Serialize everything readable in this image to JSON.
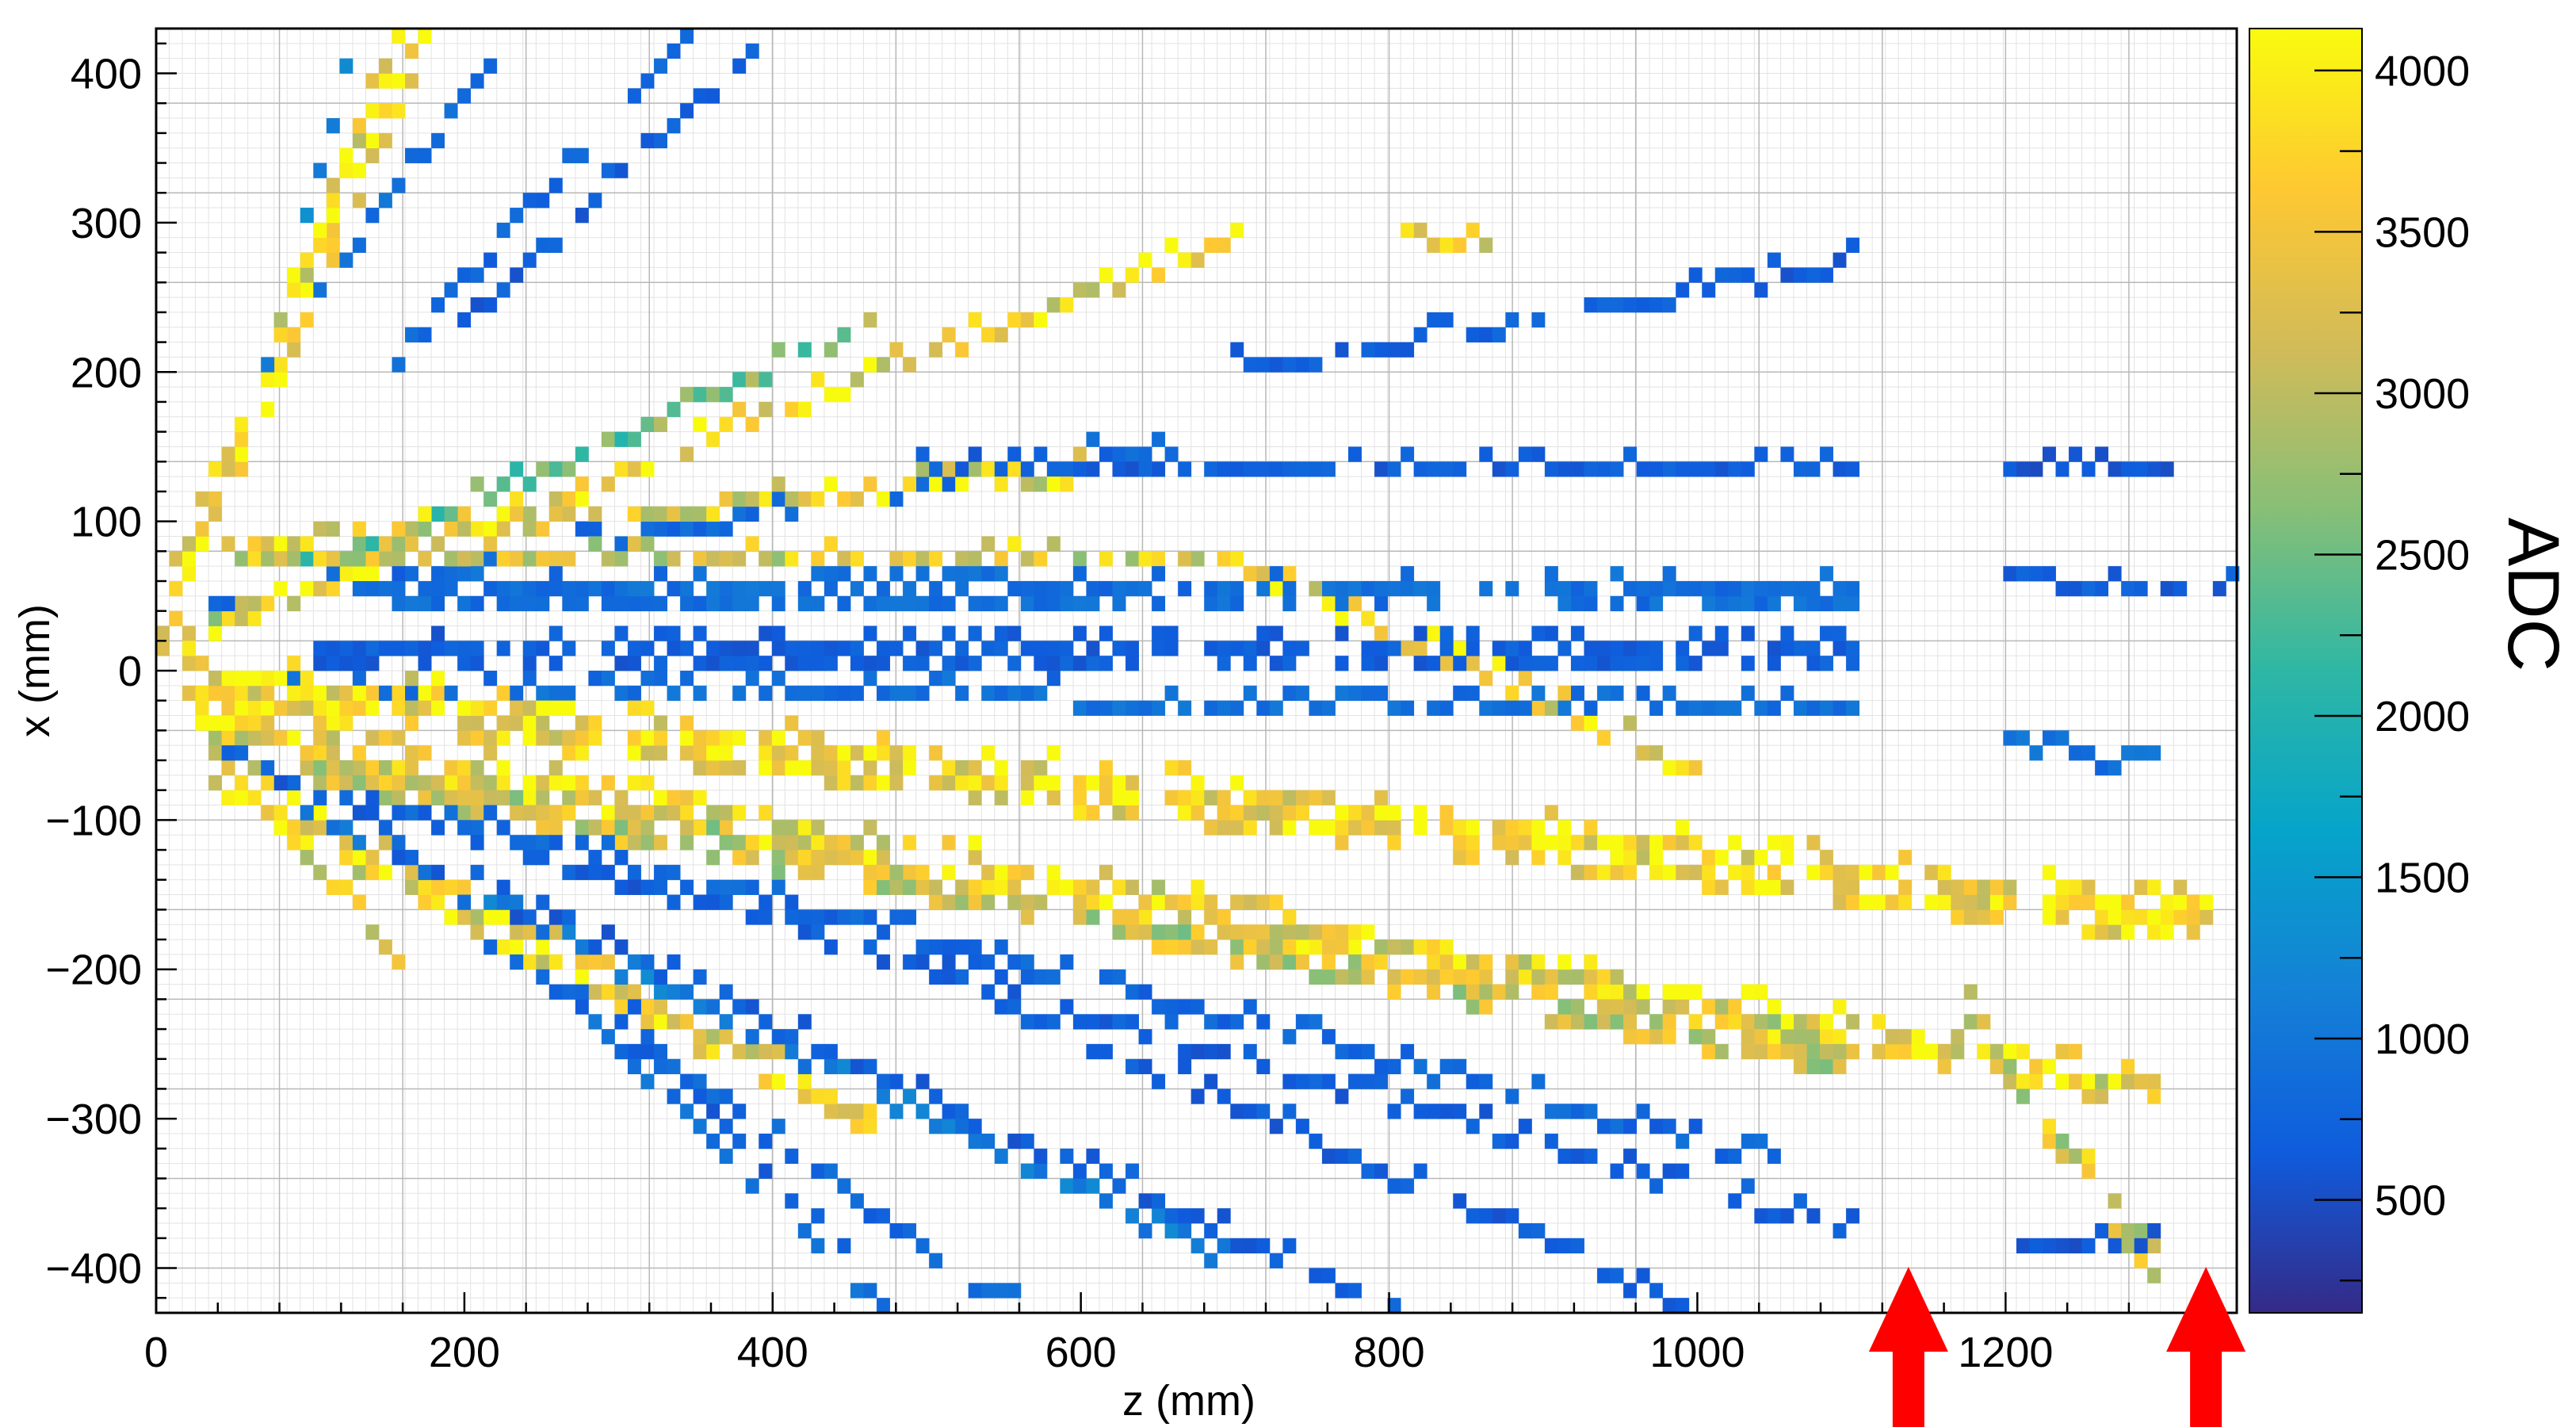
{
  "chart_data": {
    "type": "heatmap",
    "title": "",
    "xlabel": "z (mm)",
    "ylabel": "x (mm)",
    "zlabel": "ADC",
    "xlim": [
      0,
      1350
    ],
    "ylim": [
      -430,
      430
    ],
    "zlim": [
      150,
      4130
    ],
    "x_ticks": [
      0,
      200,
      400,
      600,
      800,
      1000,
      1200
    ],
    "y_ticks": [
      -400,
      -300,
      -200,
      -100,
      0,
      100,
      200,
      300,
      400
    ],
    "y_tick_labels": [
      "−400",
      "−300",
      "−200",
      "−100",
      "0",
      "100",
      "200",
      "300",
      "400"
    ],
    "z_ticks": [
      500,
      1000,
      1500,
      2000,
      2500,
      3000,
      3500,
      4000
    ],
    "grid": true,
    "bin_width": 8.5,
    "bin_height": 10,
    "colormap": [
      "#352a87",
      "#0f5cdd",
      "#1481d6",
      "#06a4ca",
      "#2eb7a4",
      "#87bf77",
      "#d1bb59",
      "#fec832",
      "#f9fb0e"
    ],
    "markers": [
      {
        "name": "arrow-1",
        "x": 1137,
        "color": "#ff0000"
      },
      {
        "name": "arrow-2",
        "x": 1330,
        "color": "#ff0000"
      }
    ],
    "tracks": [
      {
        "z0": 0,
        "x0": 20,
        "z1": 170,
        "x1": 430,
        "adc": 3900,
        "w": 2
      },
      {
        "z0": 10,
        "x0": 60,
        "z1": 160,
        "x1": 430,
        "adc": 3600,
        "w": 2
      },
      {
        "z0": 60,
        "x0": 160,
        "z1": 130,
        "x1": 430,
        "adc": 1200,
        "w": 1
      },
      {
        "z0": 100,
        "x0": 240,
        "z1": 230,
        "x1": 430,
        "adc": 900,
        "w": 1
      },
      {
        "z0": 150,
        "x0": 190,
        "z1": 350,
        "x1": 430,
        "adc": 800,
        "w": 1
      },
      {
        "z0": 200,
        "x0": 230,
        "z1": 400,
        "x1": 430,
        "adc": 700,
        "w": 1
      },
      {
        "z0": 20,
        "x0": 20,
        "z1": 700,
        "x1": 290,
        "adc": 3700,
        "w": 1
      },
      {
        "z0": 810,
        "x0": 285,
        "z1": 860,
        "x1": 285,
        "adc": 3500,
        "w": 1
      },
      {
        "z0": 30,
        "x0": 30,
        "z1": 460,
        "x1": 230,
        "adc": 2600,
        "w": 1
      },
      {
        "z0": 700,
        "x0": 200,
        "z1": 1100,
        "x1": 270,
        "adc": 700,
        "w": 1
      },
      {
        "z0": 40,
        "x0": 40,
        "z1": 650,
        "x1": 150,
        "adc": 800,
        "w": 1
      },
      {
        "z0": 50,
        "x0": 80,
        "z1": 600,
        "x1": 130,
        "adc": 3600,
        "w": 1
      },
      {
        "z0": 500,
        "x0": 140,
        "z1": 1100,
        "x1": 130,
        "adc": 700,
        "w": 1
      },
      {
        "z0": 1200,
        "x0": 130,
        "z1": 1310,
        "x1": 140,
        "adc": 600,
        "w": 1
      },
      {
        "z0": 40,
        "x0": 70,
        "z1": 700,
        "x1": 70,
        "adc": 3400,
        "w": 1
      },
      {
        "z0": 700,
        "x0": 70,
        "z1": 1000,
        "x1": -70,
        "adc": 3700,
        "w": 1
      },
      {
        "z0": 150,
        "x0": 50,
        "z1": 1100,
        "x1": 50,
        "adc": 900,
        "w": 2
      },
      {
        "z0": 1200,
        "x0": 50,
        "z1": 1350,
        "x1": 60,
        "adc": 700,
        "w": 1
      },
      {
        "z0": 100,
        "x0": 20,
        "z1": 1100,
        "x1": 10,
        "adc": 700,
        "w": 2
      },
      {
        "z0": 80,
        "x0": -10,
        "z1": 1100,
        "x1": -30,
        "adc": 900,
        "w": 1
      },
      {
        "z0": 20,
        "x0": -10,
        "z1": 1330,
        "x1": -170,
        "adc": 3800,
        "w": 3
      },
      {
        "z0": 30,
        "x0": -30,
        "z1": 1300,
        "x1": -280,
        "adc": 3600,
        "w": 2
      },
      {
        "z0": 100,
        "x0": -60,
        "z1": 1100,
        "x1": -260,
        "adc": 3200,
        "w": 2
      },
      {
        "z0": 1180,
        "x0": -230,
        "z1": 1300,
        "x1": -400,
        "adc": 3300,
        "w": 2
      },
      {
        "z0": 1200,
        "x0": -50,
        "z1": 1300,
        "x1": -70,
        "adc": 900,
        "w": 1
      },
      {
        "z0": 40,
        "x0": -70,
        "z1": 460,
        "x1": -300,
        "adc": 3600,
        "w": 2
      },
      {
        "z0": 60,
        "x0": -80,
        "z1": 160,
        "x1": -200,
        "adc": 3500,
        "w": 1
      },
      {
        "z0": 50,
        "x0": -60,
        "z1": 1050,
        "x1": -330,
        "adc": 800,
        "w": 1
      },
      {
        "z0": 60,
        "x0": -70,
        "z1": 1100,
        "x1": -380,
        "adc": 700,
        "w": 1
      },
      {
        "z0": 100,
        "x0": -100,
        "z1": 700,
        "x1": -400,
        "adc": 1100,
        "w": 1
      },
      {
        "z0": 150,
        "x0": -120,
        "z1": 800,
        "x1": -430,
        "adc": 700,
        "w": 1
      },
      {
        "z0": 200,
        "x0": -170,
        "z1": 560,
        "x1": -430,
        "adc": 800,
        "w": 1
      },
      {
        "z0": 250,
        "x0": -200,
        "z1": 470,
        "x1": -430,
        "adc": 900,
        "w": 1
      },
      {
        "z0": 300,
        "x0": -230,
        "z1": 450,
        "x1": -390,
        "adc": 700,
        "w": 1
      },
      {
        "z0": 500,
        "x0": -200,
        "z1": 1000,
        "x1": -430,
        "adc": 700,
        "w": 1
      },
      {
        "z0": 1210,
        "x0": -390,
        "z1": 1300,
        "x1": -380,
        "adc": 600,
        "w": 1
      }
    ]
  }
}
